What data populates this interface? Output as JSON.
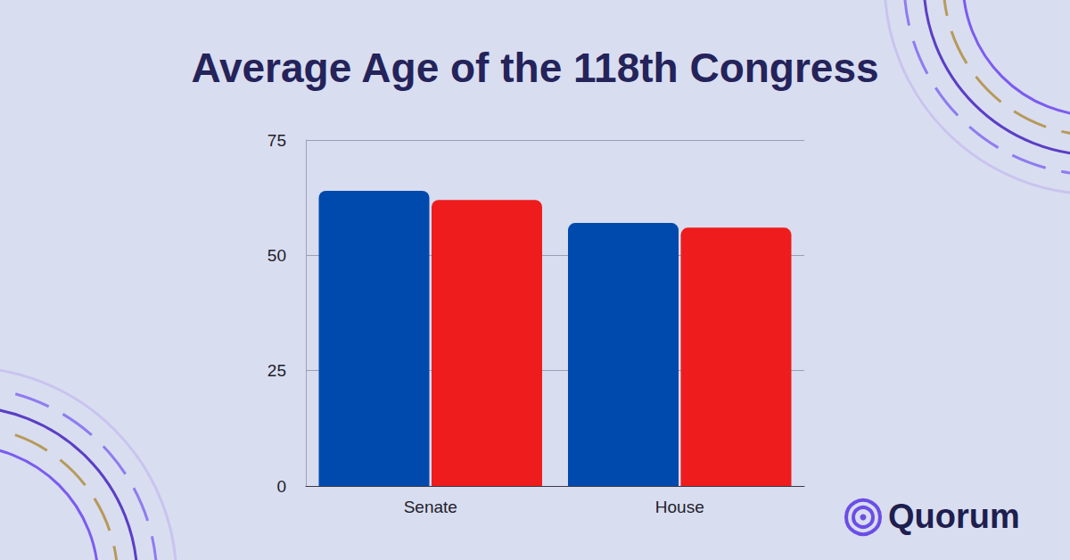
{
  "chart_data": {
    "type": "bar",
    "title": "Average Age of the 118th Congress",
    "categories": [
      "Senate",
      "House"
    ],
    "series": [
      {
        "color": "#004aad",
        "values": [
          64,
          57
        ]
      },
      {
        "color": "#ee1c1c",
        "values": [
          62,
          56
        ]
      }
    ],
    "ylim": [
      0,
      75
    ],
    "yticks": [
      0,
      25,
      50,
      75
    ],
    "grid": true,
    "annotations": [
      "Quorum"
    ]
  }
}
